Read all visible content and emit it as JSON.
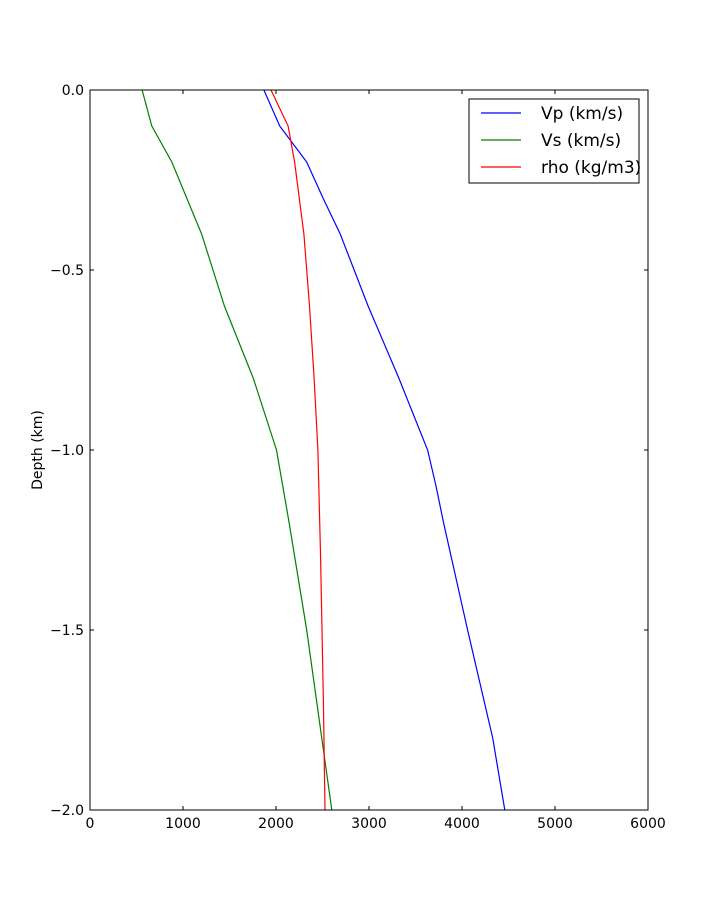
{
  "chart_data": {
    "type": "line",
    "title": "",
    "xlabel": "",
    "ylabel": "Depth (km)",
    "xlim": [
      0,
      6000
    ],
    "ylim": [
      -2.0,
      0.0
    ],
    "xticks": [
      0,
      1000,
      2000,
      3000,
      4000,
      5000,
      6000
    ],
    "xtick_labels": [
      "0",
      "1000",
      "2000",
      "3000",
      "4000",
      "5000",
      "6000"
    ],
    "yticks": [
      0.0,
      -0.5,
      -1.0,
      -1.5,
      -2.0
    ],
    "ytick_labels": [
      "0.0",
      "−0.5",
      "−1.0",
      "−1.5",
      "−2.0"
    ],
    "grid": false,
    "legend_position": "top-right",
    "series": [
      {
        "name": "Vp (km/s)",
        "color": "#0000ff",
        "x": [
          1870,
          2040,
          2330,
          2505,
          2690,
          2990,
          3320,
          3630,
          3720,
          3800,
          4060,
          4330,
          4460
        ],
        "y": [
          0.0,
          -0.1,
          -0.2,
          -0.3,
          -0.4,
          -0.6,
          -0.8,
          -1.0,
          -1.1,
          -1.2,
          -1.5,
          -1.8,
          -2.0
        ]
      },
      {
        "name": "Vs (km/s)",
        "color": "#008000",
        "x": [
          560,
          665,
          880,
          1200,
          1445,
          1755,
          2005,
          2140,
          2330,
          2600
        ],
        "y": [
          0.0,
          -0.1,
          -0.2,
          -0.4,
          -0.6,
          -0.8,
          -1.0,
          -1.2,
          -1.5,
          -2.0
        ]
      },
      {
        "name": "rho (kg/m3)",
        "color": "#ff0000",
        "x": [
          1946,
          2130,
          2200,
          2300,
          2360,
          2410,
          2450,
          2480,
          2510,
          2527
        ],
        "y": [
          0.0,
          -0.1,
          -0.2,
          -0.4,
          -0.6,
          -0.8,
          -1.0,
          -1.3,
          -1.7,
          -2.0
        ]
      }
    ]
  }
}
